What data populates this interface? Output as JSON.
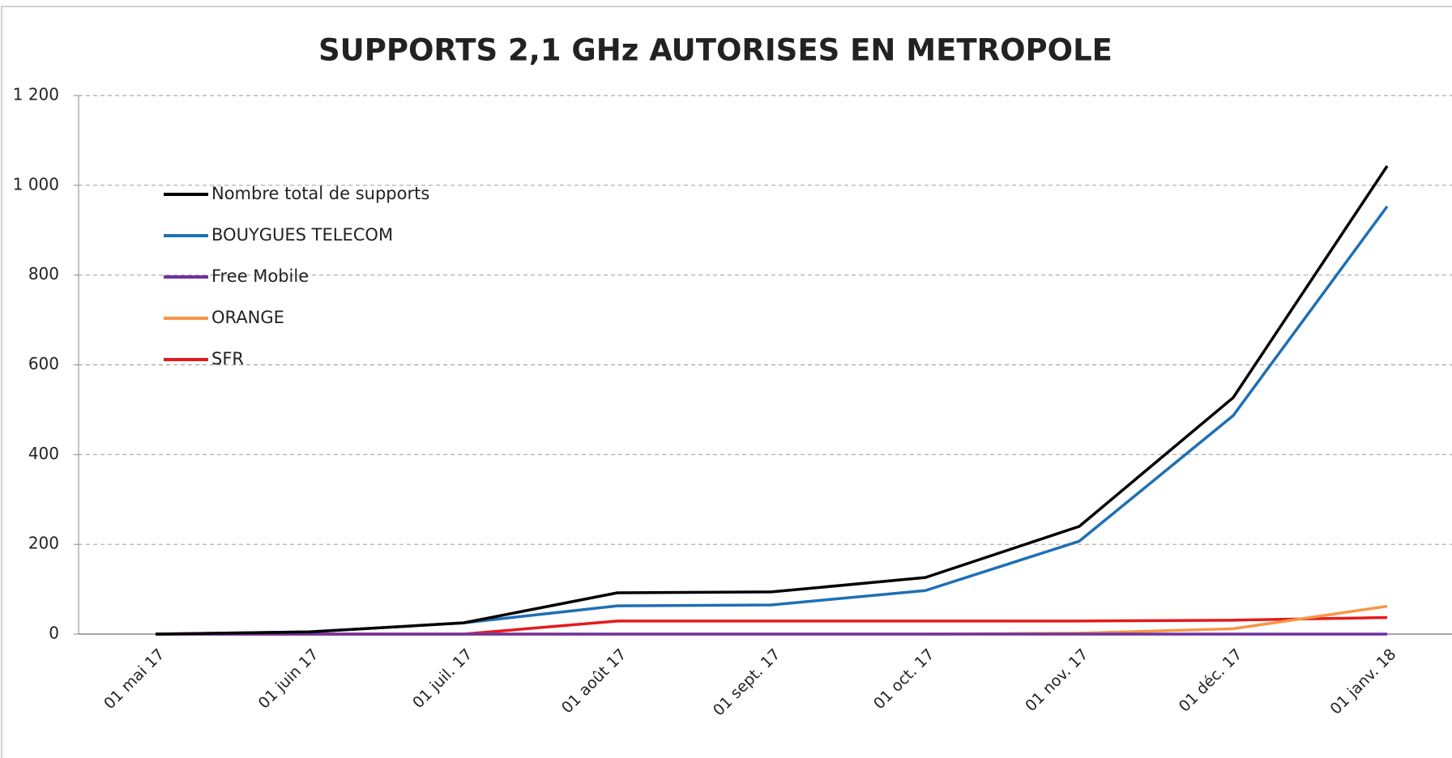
{
  "chart_data": {
    "type": "line",
    "title": "SUPPORTS 2,1 GHz AUTORISES EN METROPOLE",
    "categories": [
      "01 mai 17",
      "01 juin 17",
      "01 juil. 17",
      "01 août 17",
      "01 sept. 17",
      "01 oct. 17",
      "01 nov. 17",
      "01 déc. 17",
      "01 janv. 18"
    ],
    "series": [
      {
        "name": "Nombre total de supports",
        "color": "#000000",
        "values": [
          0,
          5,
          25,
          92,
          94,
          126,
          240,
          527,
          1043
        ]
      },
      {
        "name": "BOUYGUES TELECOM",
        "color": "#1f6fb4",
        "values": [
          0,
          5,
          25,
          63,
          65,
          97,
          207,
          487,
          953
        ]
      },
      {
        "name": "Free Mobile",
        "color": "#7030a0",
        "values": [
          0,
          0,
          0,
          0,
          0,
          0,
          0,
          0,
          0
        ]
      },
      {
        "name": "ORANGE",
        "color": "#f79646",
        "values": [
          0,
          0,
          0,
          0,
          0,
          0,
          2,
          12,
          62
        ]
      },
      {
        "name": "SFR",
        "color": "#e41a1c",
        "values": [
          0,
          0,
          0,
          29,
          29,
          29,
          29,
          31,
          37
        ]
      }
    ],
    "ylim": [
      0,
      1200
    ],
    "yticks": [
      0,
      200,
      400,
      600,
      800,
      {
        "value": 1000,
        "label": "1 000"
      },
      {
        "value": 1200,
        "label": "1 200"
      }
    ],
    "grid": true,
    "legend": "upper left"
  }
}
